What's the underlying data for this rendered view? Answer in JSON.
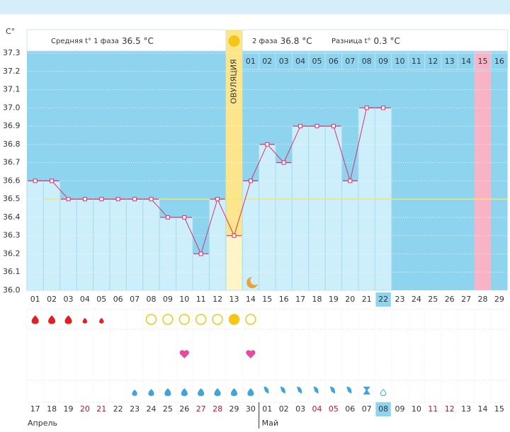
{
  "chart_data": {
    "type": "line",
    "y_unit": "C°",
    "phase1_label": "Средняя t° 1 фаза",
    "phase1_value": "36.5 °C",
    "phase2_label": "2 фаза",
    "phase2_value": "36.8 °C",
    "diff_label": "Разница t°",
    "diff_value": "0.3 °C",
    "ovulation_label": "ОВУЛЯЦИЯ",
    "categories": [
      "01",
      "02",
      "03",
      "04",
      "05",
      "06",
      "07",
      "08",
      "09",
      "10",
      "11",
      "12",
      "13",
      "14",
      "15",
      "16",
      "17",
      "18",
      "19",
      "20",
      "21",
      "22",
      "23",
      "24",
      "25",
      "26",
      "27",
      "28",
      "29"
    ],
    "values": [
      36.6,
      36.6,
      36.5,
      36.5,
      36.5,
      36.5,
      36.5,
      36.5,
      36.4,
      36.4,
      36.2,
      36.5,
      36.3,
      36.6,
      36.8,
      36.7,
      36.9,
      36.9,
      36.9,
      36.6,
      37.0,
      37.0,
      null,
      null,
      null,
      null,
      null,
      null,
      null
    ],
    "color": "#d6336c",
    "cover_line": 36.5,
    "phase2_days": [
      "01",
      "02",
      "03",
      "04",
      "05",
      "06",
      "07",
      "08",
      "09",
      "10",
      "11",
      "12",
      "13",
      "14",
      "15",
      "16"
    ],
    "dates": [
      "17",
      "18",
      "19",
      "20",
      "21",
      "22",
      "23",
      "24",
      "25",
      "26",
      "27",
      "28",
      "29",
      "30",
      "01",
      "02",
      "03",
      "04",
      "05",
      "06",
      "07",
      "08",
      "09",
      "10",
      "11",
      "12",
      "13",
      "14",
      "15"
    ],
    "date_colors": [
      "#333",
      "#333",
      "#333",
      "#c8102e",
      "#c8102e",
      "#333",
      "#333",
      "#333",
      "#333",
      "#333",
      "#c8102e",
      "#c8102e",
      "#333",
      "#333",
      "#333",
      "#333",
      "#333",
      "#c8102e",
      "#c8102e",
      "#333",
      "#333",
      "#333",
      "#333",
      "#333",
      "#c8102e",
      "#c8102e",
      "#333",
      "#333",
      "#333"
    ],
    "months": [
      "Апрель",
      "Май"
    ],
    "ylim": [
      36.0,
      37.3
    ],
    "yticks": [
      {
        "value": 36.0,
        "label": "36.0"
      },
      36.1,
      36.2,
      36.3,
      36.4,
      36.5,
      36.6,
      36.7,
      36.8,
      36.9,
      {
        "value": 37.0,
        "label": "37.0"
      },
      37.1,
      37.2,
      37.3
    ],
    "grid": true
  }
}
